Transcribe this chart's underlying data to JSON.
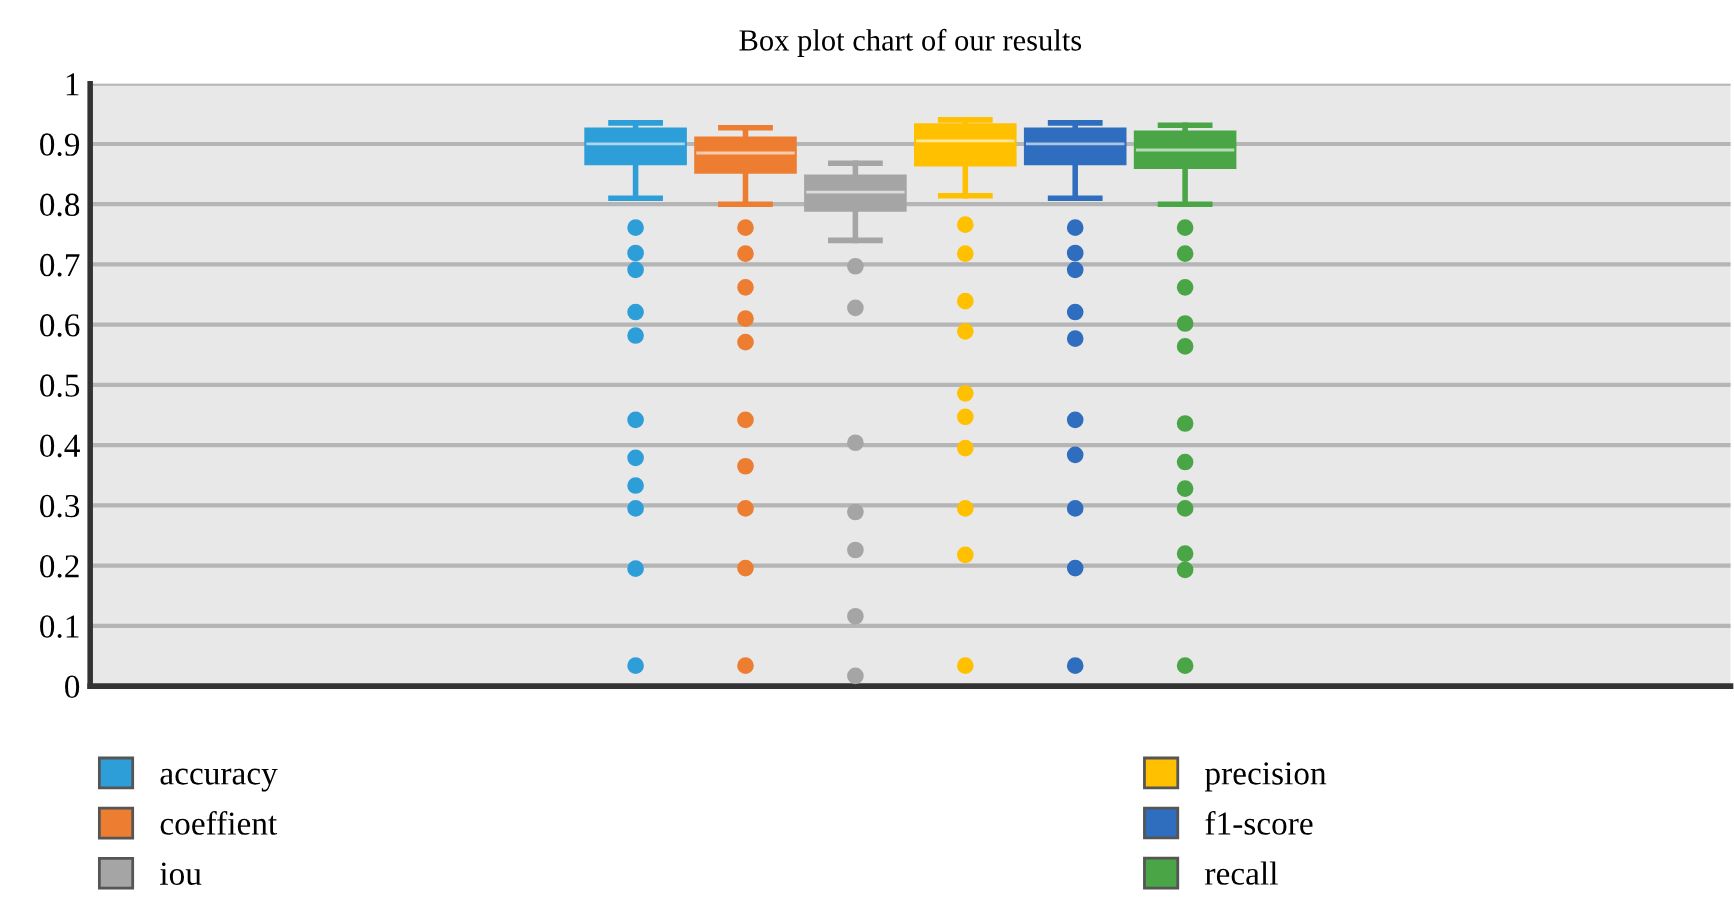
{
  "chart_data": {
    "type": "box",
    "title": "Box plot chart of our results",
    "categories": [
      null
    ],
    "ylim": [
      0,
      1
    ],
    "yticks": [
      0,
      0.1,
      0.2,
      0.3,
      0.4,
      0.5,
      0.6,
      0.7,
      0.8,
      0.9,
      1
    ],
    "grid": "y",
    "legend": "bottom",
    "tick_labels": "y",
    "series": [
      {
        "name": "accuracy",
        "color": "#2e9ed8",
        "boxes": [
          {
            "low": 0.81,
            "q1": 0.868,
            "median": 0.9,
            "q3": 0.924,
            "high": 0.935,
            "outliers": [
              0.761,
              0.719,
              0.691,
              0.621,
              0.582,
              0.442,
              0.379,
              0.333,
              0.295,
              0.195,
              0.034
            ]
          }
        ]
      },
      {
        "name": "coeffient",
        "color": "#ed7d31",
        "boxes": [
          {
            "low": 0.8,
            "q1": 0.854,
            "median": 0.885,
            "q3": 0.909,
            "high": 0.927,
            "outliers": [
              0.761,
              0.718,
              0.662,
              0.61,
              0.571,
              0.442,
              0.365,
              0.295,
              0.196,
              0.034
            ]
          }
        ]
      },
      {
        "name": "iou",
        "color": "#a5a5a5",
        "boxes": [
          {
            "low": 0.74,
            "q1": 0.791,
            "median": 0.82,
            "q3": 0.846,
            "high": 0.868,
            "outliers": [
              0.697,
              0.628,
              0.404,
              0.289,
              0.226,
              0.116,
              0.017
            ]
          }
        ]
      },
      {
        "name": "precision",
        "color": "#ffc000",
        "boxes": [
          {
            "low": 0.814,
            "q1": 0.866,
            "median": 0.905,
            "q3": 0.931,
            "high": 0.94,
            "outliers": [
              0.766,
              0.718,
              0.639,
              0.589,
              0.486,
              0.447,
              0.395,
              0.295,
              0.218,
              0.034
            ]
          }
        ]
      },
      {
        "name": "f1-score",
        "color": "#2f6ebf",
        "boxes": [
          {
            "low": 0.81,
            "q1": 0.868,
            "median": 0.9,
            "q3": 0.924,
            "high": 0.935,
            "outliers": [
              0.761,
              0.719,
              0.691,
              0.621,
              0.577,
              0.442,
              0.384,
              0.295,
              0.196,
              0.034
            ]
          }
        ]
      },
      {
        "name": "recall",
        "color": "#4aa546",
        "boxes": [
          {
            "low": 0.8,
            "q1": 0.862,
            "median": 0.89,
            "q3": 0.919,
            "high": 0.931,
            "outliers": [
              0.761,
              0.718,
              0.662,
              0.602,
              0.564,
              0.436,
              0.372,
              0.328,
              0.295,
              0.22,
              0.193,
              0.034
            ]
          }
        ]
      }
    ]
  }
}
